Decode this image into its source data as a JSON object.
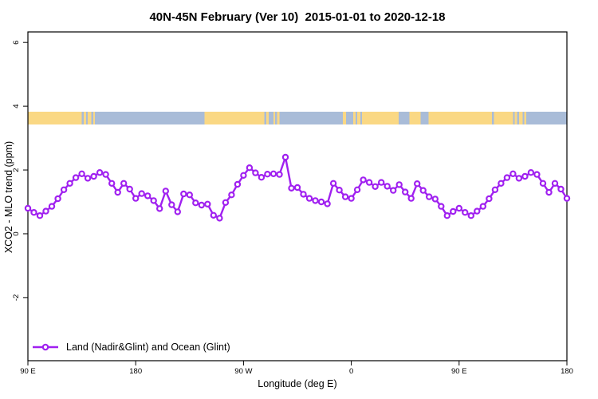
{
  "title": "40N-45N February (Ver 10)  2015-01-01 to 2020-12-18",
  "legend_label": "Land (Nadir&Glint) and Ocean (Glint)",
  "chart_data": {
    "type": "line",
    "title": "40N-45N February (Ver 10)  2015-01-01 to 2020-12-18",
    "xlabel": "Longitude (deg E)",
    "ylabel": "XCO2 - MLO trend (ppm)",
    "legend_position": "bottom-left",
    "grid": false,
    "marker": "open-circle",
    "line_color": "#A020F0",
    "axis_color": "#000000",
    "ylim": [
      -3.98,
      6.33
    ],
    "x_offset_range": [
      0,
      450
    ],
    "x_axis_note": "longitude wraps eastward from 90E: 90E to 180, 90W, 0, 90E, 180 (data repeats over final 90 deg)",
    "x_ticks": [
      {
        "offset": 0,
        "label": "90 E"
      },
      {
        "offset": 90,
        "label": "180"
      },
      {
        "offset": 180,
        "label": "90 W"
      },
      {
        "offset": 270,
        "label": "0"
      },
      {
        "offset": 360,
        "label": "90 E"
      },
      {
        "offset": 450,
        "label": "180"
      }
    ],
    "y_ticks": [
      -2,
      0,
      2,
      4,
      6
    ],
    "series": [
      {
        "name": "Land (Nadir&Glint) and Ocean (Glint)",
        "color": "#A020F0",
        "x_offsets_deg": [
          0,
          5,
          10,
          15,
          20,
          25,
          30,
          35,
          40,
          45,
          50,
          55,
          60,
          65,
          70,
          75,
          80,
          85,
          90,
          95,
          100,
          105,
          110,
          115,
          120,
          125,
          130,
          135,
          140,
          145,
          150,
          155,
          160,
          165,
          170,
          175,
          180,
          185,
          190,
          195,
          200,
          205,
          210,
          215,
          220,
          225,
          230,
          235,
          240,
          245,
          250,
          255,
          260,
          265,
          270,
          275,
          280,
          285,
          290,
          295,
          300,
          305,
          310,
          315,
          320,
          325,
          330,
          335,
          340,
          345,
          350,
          355,
          360,
          365,
          370,
          375,
          380,
          385,
          390,
          395,
          400,
          405,
          410,
          415,
          420,
          425,
          430,
          435,
          440,
          445,
          450
        ],
        "values": [
          0.8,
          0.67,
          0.57,
          0.71,
          0.86,
          1.1,
          1.38,
          1.58,
          1.76,
          1.88,
          1.74,
          1.8,
          1.92,
          1.86,
          1.58,
          1.3,
          1.58,
          1.4,
          1.11,
          1.26,
          1.19,
          1.04,
          0.79,
          1.34,
          0.91,
          0.69,
          1.25,
          1.22,
          0.97,
          0.9,
          0.93,
          0.58,
          0.49,
          0.98,
          1.22,
          1.55,
          1.83,
          2.07,
          1.91,
          1.77,
          1.87,
          1.88,
          1.86,
          2.4,
          1.43,
          1.45,
          1.24,
          1.11,
          1.04,
          1.0,
          0.94,
          1.58,
          1.37,
          1.16,
          1.11,
          1.38,
          1.69,
          1.61,
          1.48,
          1.61,
          1.49,
          1.36,
          1.54,
          1.31,
          1.11,
          1.57,
          1.36,
          1.16,
          1.09,
          0.86,
          0.57,
          0.7,
          0.8,
          0.67,
          0.57,
          0.71,
          0.86,
          1.1,
          1.38,
          1.58,
          1.76,
          1.88,
          1.74,
          1.8,
          1.92,
          1.86,
          1.58,
          1.3,
          1.58,
          1.4,
          1.11
        ]
      }
    ],
    "land_ocean_band": {
      "description": "land/ocean strip along 40N-45N",
      "y_range": [
        3.43,
        3.83
      ],
      "land_color": "#FAD884",
      "ocean_color": "#A9BCD8",
      "segments": [
        {
          "start": 0,
          "end": 45,
          "type": "land"
        },
        {
          "start": 45,
          "end": 46.5,
          "type": "ocean"
        },
        {
          "start": 46.5,
          "end": 48.5,
          "type": "land"
        },
        {
          "start": 48.5,
          "end": 50,
          "type": "ocean"
        },
        {
          "start": 50,
          "end": 53,
          "type": "land"
        },
        {
          "start": 53,
          "end": 54.5,
          "type": "ocean"
        },
        {
          "start": 54.5,
          "end": 56,
          "type": "land"
        },
        {
          "start": 56,
          "end": 147.5,
          "type": "ocean"
        },
        {
          "start": 147.5,
          "end": 197.5,
          "type": "land"
        },
        {
          "start": 197.5,
          "end": 199,
          "type": "ocean"
        },
        {
          "start": 199,
          "end": 201,
          "type": "land"
        },
        {
          "start": 201,
          "end": 205,
          "type": "ocean"
        },
        {
          "start": 205,
          "end": 206.5,
          "type": "land"
        },
        {
          "start": 206.5,
          "end": 208,
          "type": "ocean"
        },
        {
          "start": 208,
          "end": 210,
          "type": "land"
        },
        {
          "start": 210,
          "end": 263,
          "type": "ocean"
        },
        {
          "start": 263,
          "end": 265.5,
          "type": "land"
        },
        {
          "start": 265.5,
          "end": 271.5,
          "type": "ocean"
        },
        {
          "start": 271.5,
          "end": 273.5,
          "type": "land"
        },
        {
          "start": 273.5,
          "end": 275,
          "type": "ocean"
        },
        {
          "start": 275,
          "end": 277.5,
          "type": "land"
        },
        {
          "start": 277.5,
          "end": 279,
          "type": "ocean"
        },
        {
          "start": 279,
          "end": 309.5,
          "type": "land"
        },
        {
          "start": 309.5,
          "end": 318.5,
          "type": "ocean"
        },
        {
          "start": 318.5,
          "end": 328,
          "type": "land"
        },
        {
          "start": 328,
          "end": 334.5,
          "type": "ocean"
        },
        {
          "start": 334.5,
          "end": 387.5,
          "type": "land"
        },
        {
          "start": 387.5,
          "end": 389,
          "type": "ocean"
        },
        {
          "start": 389,
          "end": 405,
          "type": "land"
        },
        {
          "start": 405,
          "end": 406.5,
          "type": "ocean"
        },
        {
          "start": 406.5,
          "end": 408.5,
          "type": "land"
        },
        {
          "start": 408.5,
          "end": 410,
          "type": "ocean"
        },
        {
          "start": 410,
          "end": 413,
          "type": "land"
        },
        {
          "start": 413,
          "end": 414.5,
          "type": "ocean"
        },
        {
          "start": 414.5,
          "end": 416,
          "type": "land"
        },
        {
          "start": 416,
          "end": 450,
          "type": "ocean"
        }
      ]
    }
  }
}
